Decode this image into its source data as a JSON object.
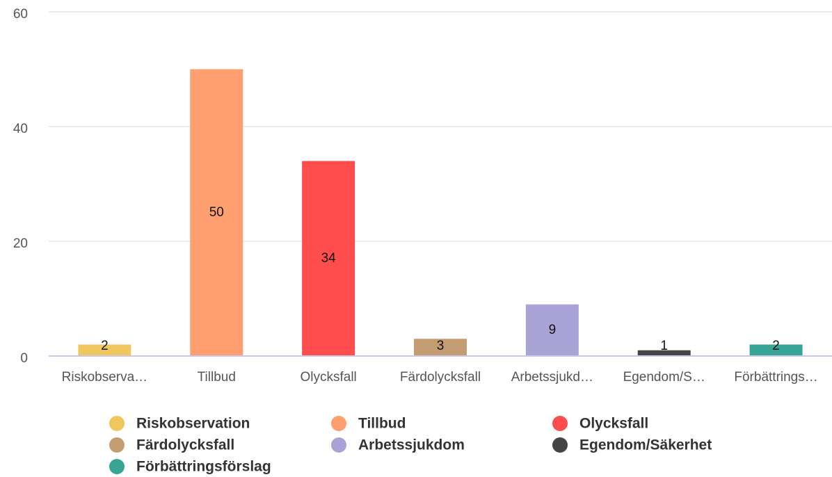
{
  "chart_data": {
    "type": "bar",
    "categories": [
      "Riskobserva…",
      "Tillbud",
      "Olycksfall",
      "Färdolycksfall",
      "Arbetssjukd…",
      "Egendom/S…",
      "Förbättrings…"
    ],
    "values": [
      2,
      50,
      34,
      3,
      9,
      1,
      2
    ],
    "colors": [
      "#f0c75e",
      "#ff9e6e",
      "#ff4d4d",
      "#c49c72",
      "#aaa3d6",
      "#444444",
      "#36a596"
    ],
    "legend": [
      "Riskobservation",
      "Tillbud",
      "Olycksfall",
      "Färdolycksfall",
      "Arbetssjukdom",
      "Egendom/Säkerhet",
      "Förbättringsförslag"
    ],
    "ylim": [
      0,
      60
    ],
    "yticks": [
      0,
      20,
      40,
      60
    ],
    "grid": true
  }
}
